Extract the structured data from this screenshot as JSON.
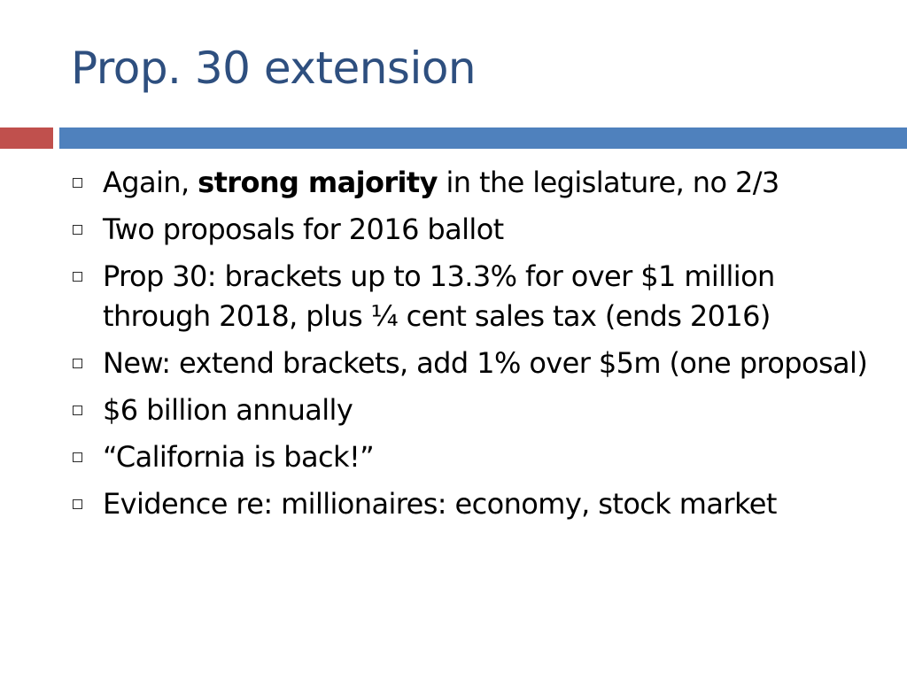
{
  "slide": {
    "title": "Prop. 30 extension",
    "colors": {
      "title": "#2e4f7f",
      "accent_red": "#c0504d",
      "accent_blue": "#4f81bd"
    },
    "bullet_icon": "square-outline-icon",
    "bullets": [
      {
        "before": "Again, ",
        "strong": "strong majority",
        "after": " in the legislature, no 2/3"
      },
      {
        "text": "Two proposals for 2016 ballot"
      },
      {
        "text": "Prop 30: brackets up to 13.3% for over $1 million through 2018, plus ¼ cent sales tax (ends 2016)"
      },
      {
        "text": "New: extend brackets, add 1% over $5m (one proposal)"
      },
      {
        "text": "$6 billion annually"
      },
      {
        "text": "“California is back!”"
      },
      {
        "text": "Evidence re: millionaires:  economy, stock market"
      }
    ]
  }
}
